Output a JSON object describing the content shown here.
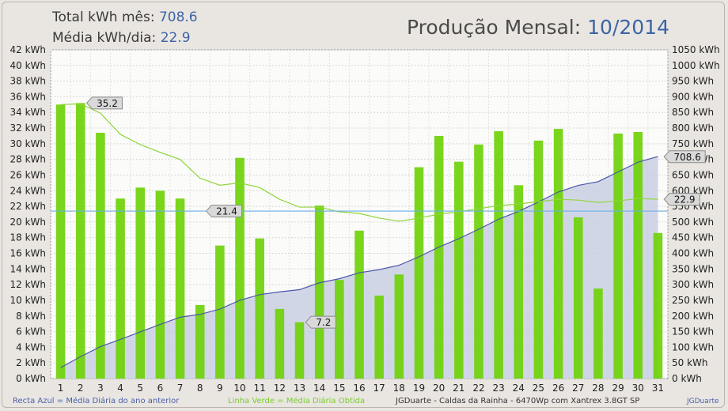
{
  "header": {
    "total_label": "Total kWh mês:",
    "total_value": "708.6",
    "avg_label": "Média kWh/dia:",
    "avg_value": "22.9",
    "title_label": "Produção Mensal:",
    "title_value": "10/2014"
  },
  "footer": {
    "blue_note": "Recta Azul = Média Diária do ano anterior",
    "green_note": "Linha Verde = Média Diária Obtida",
    "info": "JGDuarte  -  Caldas da Rainha  -  6470Wp com Xantrex 3.8GT SP",
    "brand": "JGDuarte"
  },
  "chart_data": {
    "type": "bar",
    "x": [
      1,
      2,
      3,
      4,
      5,
      6,
      7,
      8,
      9,
      10,
      11,
      12,
      13,
      14,
      15,
      16,
      17,
      18,
      19,
      20,
      21,
      22,
      23,
      24,
      25,
      26,
      27,
      28,
      29,
      30,
      31
    ],
    "y_left_unit": "kWh",
    "y_right_unit": "kWh",
    "ylim_left": [
      0,
      42
    ],
    "ylim_right": [
      0,
      1050
    ],
    "left_ticks": [
      0,
      2,
      4,
      6,
      8,
      10,
      12,
      14,
      16,
      18,
      20,
      22,
      24,
      26,
      28,
      30,
      32,
      34,
      36,
      38,
      40,
      42
    ],
    "right_ticks": [
      0,
      50,
      100,
      150,
      200,
      250,
      300,
      350,
      400,
      450,
      500,
      550,
      600,
      650,
      700,
      750,
      800,
      850,
      900,
      950,
      1000,
      1050
    ],
    "grid": true,
    "series": [
      {
        "kind": "bar",
        "axis": "left",
        "color": "#6fd10a",
        "values": [
          35.0,
          35.2,
          31.4,
          23.0,
          24.4,
          24.0,
          23.0,
          9.4,
          17.0,
          28.2,
          17.9,
          8.9,
          7.2,
          22.1,
          12.6,
          18.9,
          10.6,
          13.3,
          27.0,
          31.0,
          27.7,
          29.9,
          31.6,
          24.7,
          30.4,
          31.9,
          20.6,
          11.5,
          31.3,
          31.5,
          18.6
        ]
      },
      {
        "kind": "area",
        "axis": "right",
        "color": "#4a57a8",
        "fill": "#c9cfe3",
        "values": [
          35,
          70,
          102,
          125,
          149,
          173,
          196,
          205,
          222,
          250,
          268,
          277,
          284,
          306,
          319,
          338,
          348,
          362,
          389,
          420,
          447,
          477,
          509,
          534,
          564,
          596,
          617,
          629,
          660,
          691,
          709
        ]
      },
      {
        "kind": "line",
        "axis": "left",
        "color": "#8fd63a",
        "values": [
          35.0,
          35.1,
          33.9,
          31.2,
          29.9,
          28.9,
          28.0,
          25.6,
          24.7,
          25.0,
          24.4,
          22.9,
          21.9,
          21.9,
          21.3,
          21.1,
          20.5,
          20.1,
          20.5,
          21.0,
          21.3,
          21.7,
          22.1,
          22.3,
          22.6,
          22.9,
          22.8,
          22.5,
          22.7,
          23.0,
          22.9
        ]
      },
      {
        "kind": "hline",
        "axis": "left",
        "color": "#6aaee8",
        "value": 21.4
      }
    ],
    "annotations": [
      {
        "text": "35.2",
        "x": 2,
        "y": 35.2,
        "axis": "left"
      },
      {
        "text": "21.4",
        "x": 8,
        "y": 21.4,
        "axis": "left"
      },
      {
        "text": "7.2",
        "x": 13,
        "y": 7.2,
        "axis": "left"
      },
      {
        "text": "708.6",
        "x": 31,
        "y": 708.6,
        "axis": "right"
      },
      {
        "text": "22.9",
        "x": 31,
        "y": 22.9,
        "axis": "left"
      }
    ]
  }
}
